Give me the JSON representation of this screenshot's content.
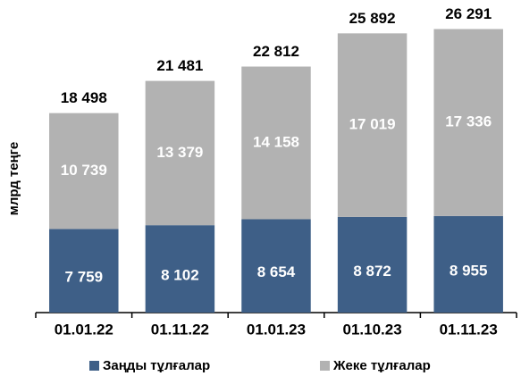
{
  "chart_data": {
    "type": "stacked_bar",
    "y_label": "млрд теңге",
    "categories": [
      "01.01.22",
      "01.11.22",
      "01.01.23",
      "01.10.23",
      "01.11.23"
    ],
    "series": [
      {
        "name": "Заңды тұлғалар",
        "color": "#3e5f87",
        "values": [
          7759,
          8102,
          8654,
          8872,
          8955
        ],
        "value_labels": [
          "7 759",
          "8 102",
          "8 654",
          "8 872",
          "8 955"
        ]
      },
      {
        "name": "Жеке тұлғалар",
        "color": "#b2b2b2",
        "values": [
          10739,
          13379,
          14158,
          17019,
          17336
        ],
        "value_labels": [
          "10 739",
          "13 379",
          "14 158",
          "17 019",
          "17 336"
        ]
      }
    ],
    "totals": [
      18498,
      21481,
      22812,
      25892,
      26291
    ],
    "totals_labels": [
      "18 498",
      "21 481",
      "22 812",
      "25 892",
      "26 291"
    ],
    "ylim": [
      0,
      26500
    ]
  }
}
